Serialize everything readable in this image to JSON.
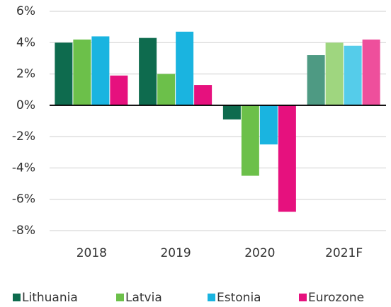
{
  "chart_data": {
    "type": "bar",
    "categories": [
      "2018",
      "2019",
      "2020",
      "2021F"
    ],
    "series": [
      {
        "name": "Lithuania",
        "color": "#0e6b4e",
        "colors": [
          "#0e6b4e",
          "#0e6b4e",
          "#0e6b4e",
          "#4e9a83"
        ],
        "values": [
          4.0,
          4.3,
          -0.9,
          3.2
        ]
      },
      {
        "name": "Latvia",
        "color": "#6cc04a",
        "colors": [
          "#6cc04a",
          "#6cc04a",
          "#6cc04a",
          "#9fd67f"
        ],
        "values": [
          4.2,
          2.0,
          -4.5,
          4.0
        ]
      },
      {
        "name": "Estonia",
        "color": "#1ab4e0",
        "colors": [
          "#1ab4e0",
          "#1ab4e0",
          "#1ab4e0",
          "#55ccea"
        ],
        "values": [
          4.4,
          4.7,
          -2.5,
          3.8
        ]
      },
      {
        "name": "Eurozone",
        "color": "#e6117e",
        "colors": [
          "#e6117e",
          "#e6117e",
          "#e6117e",
          "#ee4f9c"
        ],
        "values": [
          1.9,
          1.3,
          -6.8,
          4.2
        ]
      }
    ],
    "ylim": [
      -8,
      6
    ],
    "yticks": [
      {
        "value": -8,
        "label": "-8%"
      },
      {
        "value": -6,
        "label": "-6%"
      },
      {
        "value": -4,
        "label": "-4%"
      },
      {
        "value": -2,
        "label": "-2%"
      },
      {
        "value": 0,
        "label": "0%"
      },
      {
        "value": 2,
        "label": "2%"
      },
      {
        "value": 4,
        "label": "4%"
      },
      {
        "value": 6,
        "label": "6%"
      }
    ],
    "grid": true,
    "legend": "bottom"
  }
}
